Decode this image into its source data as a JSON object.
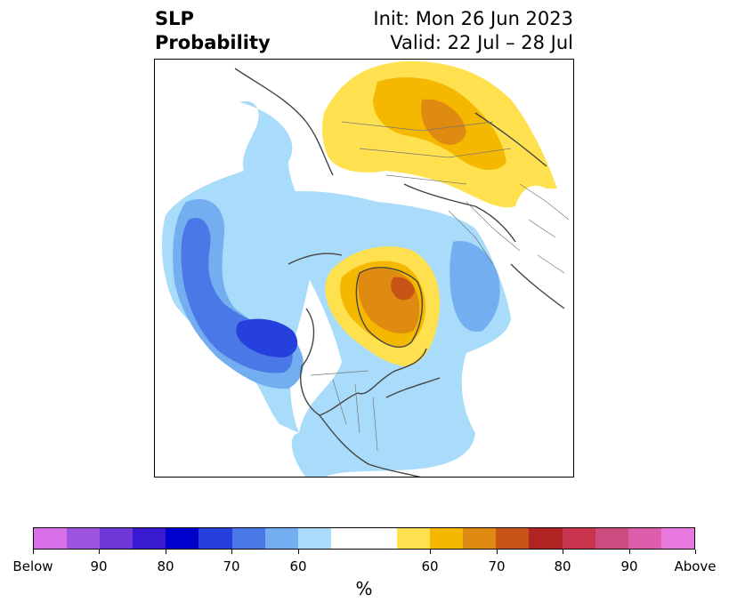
{
  "title": {
    "left_line1": "SLP",
    "left_line2": "Probability",
    "right_line1": "Init: Mon 26 Jun 2023",
    "right_line2": "Valid: 22 Jul – 28 Jul"
  },
  "colorbar": {
    "colors": [
      "#d870e8",
      "#9d55e0",
      "#6f38d8",
      "#3a1ad0",
      "#0000cc",
      "#2540dc",
      "#4a78e6",
      "#73aef0",
      "#a9dcfa",
      "#ffffff",
      "#ffffff",
      "#ffe14f",
      "#f5b800",
      "#df8a10",
      "#c85518",
      "#b02424",
      "#c8344e",
      "#cd4b7e",
      "#dd5eaa",
      "#e878de"
    ],
    "tick_labels": [
      "Below",
      "90",
      "80",
      "70",
      "60",
      "60",
      "70",
      "80",
      "90",
      "Above"
    ],
    "unit": "%"
  },
  "map_colors": {
    "below_60": "#a9dcfa",
    "below_70": "#73aef0",
    "below_80": "#4a78e6",
    "below_90": "#2540dc",
    "above_60": "#ffe14f",
    "above_70": "#f5b800",
    "above_80": "#df8a10",
    "above_90": "#c85518",
    "coast": "#444444"
  }
}
